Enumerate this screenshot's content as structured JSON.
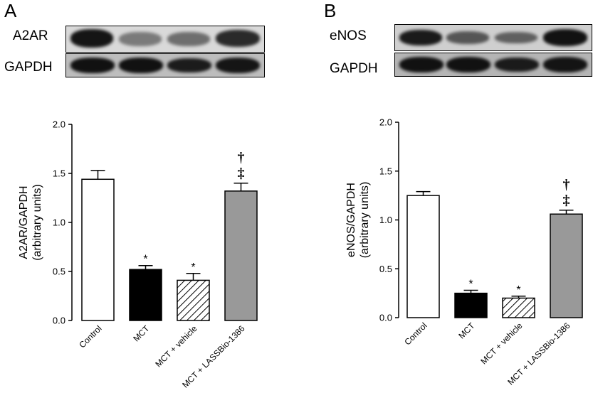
{
  "chart_data": [
    {
      "type": "bar",
      "panel_label": "A",
      "blot_labels": [
        "A2AR",
        "GAPDH"
      ],
      "categories": [
        "Control",
        "MCT",
        "MCT + vehicle",
        "MCT + LASSBio-1386"
      ],
      "values": [
        1.44,
        0.52,
        0.41,
        1.32
      ],
      "errors": [
        0.09,
        0.04,
        0.07,
        0.08
      ],
      "fills": [
        "#ffffff",
        "#000000",
        "hatch",
        "#999999"
      ],
      "annotations": [
        [],
        [
          "*"
        ],
        [
          "*"
        ],
        [
          "‡",
          "†"
        ]
      ],
      "ylabel_lines": [
        "A2AR/GAPDH",
        "(arbitrary units)"
      ],
      "ylim": [
        0,
        2.0
      ],
      "yticks": [
        "0.0",
        "0.5",
        "1.0",
        "1.5",
        "2.0"
      ]
    },
    {
      "type": "bar",
      "panel_label": "B",
      "blot_labels": [
        "eNOS",
        "GAPDH"
      ],
      "categories": [
        "Control",
        "MCT",
        "MCT + vehicle",
        "MCT + LASSBio-1386"
      ],
      "values": [
        1.25,
        0.25,
        0.2,
        1.06
      ],
      "errors": [
        0.04,
        0.03,
        0.02,
        0.04
      ],
      "fills": [
        "#ffffff",
        "#000000",
        "hatch",
        "#999999"
      ],
      "annotations": [
        [],
        [
          "*"
        ],
        [
          "*"
        ],
        [
          "‡",
          "†"
        ]
      ],
      "ylabel_lines": [
        "eNOS/GAPDH",
        "(arbitrary units)"
      ],
      "ylim": [
        0,
        2.0
      ],
      "yticks": [
        "0.0",
        "0.5",
        "1.0",
        "1.5",
        "2.0"
      ]
    }
  ]
}
